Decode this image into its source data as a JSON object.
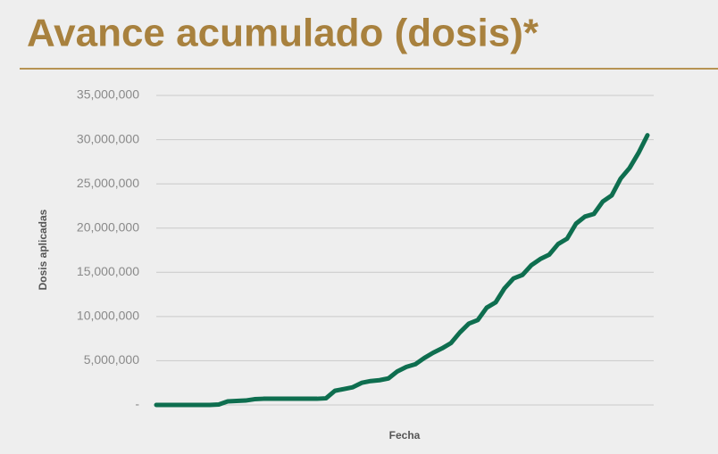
{
  "chart_data": {
    "type": "line",
    "title": "Avance acumulado (dosis)*",
    "y_label": "Dosis aplicadas",
    "x_label": "Fecha",
    "categories": [
      null,
      null,
      null,
      null,
      null,
      null,
      null,
      null,
      null,
      null,
      null,
      null,
      null,
      null,
      null,
      null,
      null,
      null,
      null,
      null,
      null,
      null,
      null,
      null,
      null,
      null,
      null,
      null,
      null,
      null,
      null,
      null,
      null,
      null,
      null,
      null,
      null,
      null,
      null,
      null,
      null,
      null,
      null,
      null,
      null,
      null,
      null,
      null,
      null,
      null,
      null,
      null,
      null,
      null,
      null,
      null
    ],
    "series": [
      {
        "name": "Dosis aplicadas",
        "color": "#0e6e4f",
        "values": [
          0,
          0,
          0,
          0,
          0,
          0,
          0,
          50000,
          400000,
          450000,
          500000,
          650000,
          700000,
          700000,
          700000,
          700000,
          700000,
          700000,
          700000,
          750000,
          1600000,
          1800000,
          2000000,
          2500000,
          2700000,
          2800000,
          3000000,
          3800000,
          4300000,
          4600000,
          5300000,
          5900000,
          6400000,
          7000000,
          8200000,
          9200000,
          9600000,
          11000000,
          11600000,
          13200000,
          14300000,
          14700000,
          15800000,
          16500000,
          17000000,
          18200000,
          18800000,
          20500000,
          21300000,
          21600000,
          23000000,
          23700000,
          25600000,
          26800000,
          28500000,
          30500000
        ]
      }
    ],
    "ylim": [
      0,
      35000000
    ],
    "yticks": [
      {
        "value": 0,
        "label": "-"
      },
      {
        "value": 5000000,
        "label": "5,000,000"
      },
      {
        "value": 10000000,
        "label": "10,000,000"
      },
      {
        "value": 15000000,
        "label": "15,000,000"
      },
      {
        "value": 20000000,
        "label": "20,000,000"
      },
      {
        "value": 25000000,
        "label": "25,000,000"
      },
      {
        "value": 30000000,
        "label": "30,000,000"
      },
      {
        "value": 35000000,
        "label": "35,000,000"
      }
    ],
    "grid": true
  }
}
